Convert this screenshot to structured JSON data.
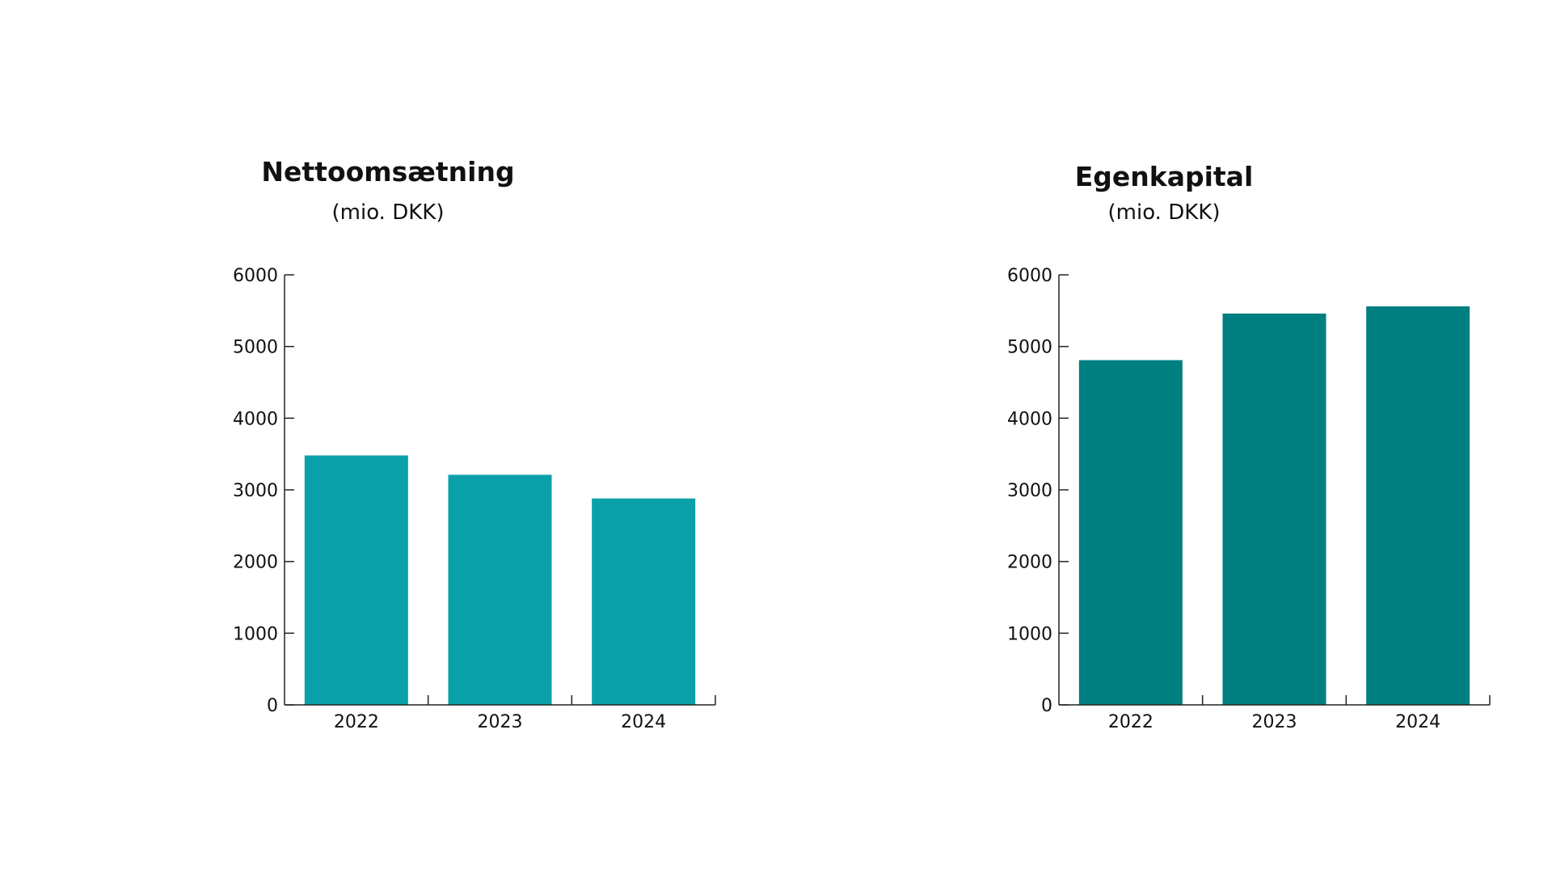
{
  "chart_data": [
    {
      "type": "bar",
      "title": "Nettoomsætning",
      "subtitle": "(mio. DKK)",
      "categories": [
        "2022",
        "2023",
        "2024"
      ],
      "values": [
        3480,
        3210,
        2880
      ],
      "ylim": [
        0,
        6000
      ],
      "yticks": [
        "0",
        "1000",
        "2000",
        "3000",
        "4000",
        "5000",
        "6000"
      ],
      "xlabel": "",
      "ylabel": "",
      "grid": false,
      "legend": "none",
      "color": "#0aa0aa"
    },
    {
      "type": "bar",
      "title": "Egenkapital",
      "subtitle": "(mio. DKK)",
      "categories": [
        "2022",
        "2023",
        "2024"
      ],
      "values": [
        4810,
        5460,
        5560
      ],
      "ylim": [
        0,
        6000
      ],
      "yticks": [
        "0",
        "1000",
        "2000",
        "3000",
        "4000",
        "5000",
        "6000"
      ],
      "xlabel": "",
      "ylabel": "",
      "grid": false,
      "legend": "none",
      "color": "#007f80"
    }
  ]
}
